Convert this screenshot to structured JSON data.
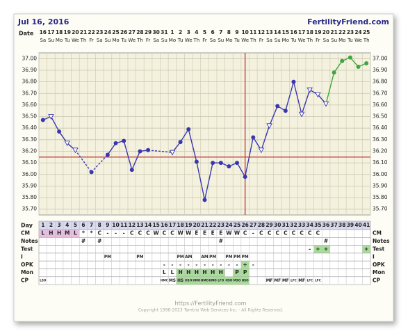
{
  "chart_data": {
    "type": "line",
    "title": "Jul 16, 2016",
    "site": "FertilityFriend.com",
    "date_label": "Date",
    "dates": [
      16,
      17,
      18,
      19,
      20,
      21,
      22,
      23,
      24,
      25,
      26,
      27,
      28,
      29,
      30,
      31,
      1,
      2,
      3,
      4,
      5,
      6,
      7,
      8,
      9,
      10,
      11,
      12,
      13,
      14,
      15,
      16,
      17,
      18,
      19,
      20,
      21,
      22,
      23,
      24,
      25
    ],
    "weekdays": [
      "Sa",
      "Su",
      "Mo",
      "Tu",
      "We",
      "Th",
      "Fr",
      "Sa",
      "Su",
      "Mo",
      "Tu",
      "We",
      "Th",
      "Fr",
      "Sa",
      "Su",
      "Mo",
      "Tu",
      "We",
      "Th",
      "Fr",
      "Sa",
      "Su",
      "Mo",
      "Tu",
      "We",
      "Th",
      "Fr",
      "Sa",
      "Su",
      "Mo",
      "Tu",
      "We",
      "Th",
      "Fr",
      "Sa",
      "Su",
      "Mo",
      "Tu",
      "We",
      "Th"
    ],
    "x": [
      1,
      2,
      3,
      4,
      5,
      6,
      7,
      8,
      9,
      10,
      11,
      12,
      13,
      14,
      15,
      16,
      17,
      18,
      19,
      20,
      21,
      22,
      23,
      24,
      25,
      26,
      27,
      28,
      29,
      30,
      31,
      32,
      33,
      34,
      35,
      36,
      37,
      38,
      39,
      40,
      41
    ],
    "series": [
      {
        "color": "#3a36b0",
        "values": [
          36.47,
          36.5,
          36.37,
          36.27,
          36.21,
          null,
          36.02,
          null,
          36.17,
          36.27,
          36.29,
          36.04,
          36.2,
          36.21,
          null,
          null,
          36.19,
          36.28,
          36.39,
          36.11,
          35.78,
          36.1,
          36.1,
          36.07,
          36.1,
          35.98,
          36.32,
          36.21,
          36.42,
          36.59,
          36.55,
          36.8,
          36.52,
          36.73,
          36.69,
          36.61,
          null,
          null,
          null,
          null,
          null
        ],
        "markers": [
          "dot",
          "open",
          "dot",
          "open",
          "open",
          null,
          "dot",
          null,
          "dot",
          "dot",
          "dot",
          "dot",
          "dot",
          "dot",
          null,
          null,
          "open",
          "dot",
          "dot",
          "dot",
          "dot",
          "dot",
          "dot",
          "dot",
          "dot",
          "dot",
          "dot",
          "open",
          "open",
          "dot",
          "dot",
          "dot",
          "open",
          "open",
          "open",
          "open",
          null,
          null,
          null,
          null,
          null
        ]
      },
      {
        "color": "#3fa53f",
        "values": [
          null,
          null,
          null,
          null,
          null,
          null,
          null,
          null,
          null,
          null,
          null,
          null,
          null,
          null,
          null,
          null,
          null,
          null,
          null,
          null,
          null,
          null,
          null,
          null,
          null,
          null,
          null,
          null,
          null,
          null,
          null,
          null,
          null,
          null,
          null,
          null,
          36.88,
          36.98,
          37.01,
          36.93,
          36.96
        ],
        "markers": [
          null,
          null,
          null,
          null,
          null,
          null,
          null,
          null,
          null,
          null,
          null,
          null,
          null,
          null,
          null,
          null,
          null,
          null,
          null,
          null,
          null,
          null,
          null,
          null,
          null,
          null,
          null,
          null,
          null,
          null,
          null,
          null,
          null,
          null,
          null,
          null,
          "dot",
          "dot",
          "dot",
          "dot",
          "dot"
        ]
      }
    ],
    "coverline": 36.15,
    "coverline_color": "#c0504d",
    "ovulation_day": 26,
    "ylim": [
      35.65,
      37.05
    ],
    "yticks": [
      {
        "value": 35.7,
        "label": "35.70"
      },
      {
        "value": 35.8,
        "label": "35.80"
      },
      {
        "value": 35.9,
        "label": "35.90"
      },
      {
        "value": 36.0,
        "label": "36.00"
      },
      {
        "value": 36.1,
        "label": "36.10"
      },
      {
        "value": 36.2,
        "label": "36.20"
      },
      {
        "value": 36.3,
        "label": "36.30"
      },
      {
        "value": 36.4,
        "label": "36.40"
      },
      {
        "value": 36.5,
        "label": "36.50"
      },
      {
        "value": 36.6,
        "label": "36.60"
      },
      {
        "value": 36.7,
        "label": "36.70"
      },
      {
        "value": 36.8,
        "label": "36.80"
      },
      {
        "value": 36.9,
        "label": "36.90"
      },
      {
        "value": 37.0,
        "label": "37.00"
      }
    ],
    "grid": true,
    "day_label": "Day",
    "rows": [
      {
        "label": "CM",
        "fill": "#e6bfe0",
        "filled": [
          1,
          2,
          3,
          4,
          5
        ],
        "cells": [
          "L",
          "H",
          "H",
          "M",
          "L",
          "*",
          "*",
          "C",
          "-",
          "-",
          "-",
          "C",
          "C",
          "C",
          "W",
          "C",
          "C",
          "W",
          "W",
          "E",
          "E",
          "E",
          "E",
          "W",
          "W",
          "C",
          "-",
          "C",
          "C",
          "C",
          "C",
          "C",
          "C",
          "C",
          "C",
          null,
          null,
          null,
          null,
          null,
          null
        ]
      },
      {
        "label": "Notes",
        "fill": null,
        "filled": [],
        "cells": [
          null,
          null,
          null,
          null,
          null,
          "#",
          null,
          "#",
          null,
          null,
          null,
          null,
          null,
          null,
          null,
          null,
          null,
          null,
          null,
          null,
          null,
          null,
          "#",
          null,
          null,
          null,
          null,
          null,
          null,
          null,
          null,
          null,
          null,
          null,
          null,
          "#",
          null,
          null,
          null,
          null,
          null
        ]
      },
      {
        "label": "Test",
        "fill": "#a9dc9a",
        "filled": [
          35,
          36,
          41
        ],
        "cells": [
          null,
          null,
          null,
          null,
          null,
          null,
          null,
          null,
          null,
          null,
          null,
          null,
          null,
          null,
          null,
          null,
          null,
          null,
          null,
          null,
          null,
          null,
          null,
          null,
          null,
          null,
          null,
          null,
          null,
          null,
          null,
          null,
          null,
          "-",
          "+",
          "+",
          null,
          null,
          null,
          null,
          "+"
        ]
      },
      {
        "label": "I",
        "fill": null,
        "filled": [],
        "cells": [
          null,
          null,
          null,
          null,
          null,
          null,
          null,
          null,
          "PM",
          null,
          null,
          null,
          "PM",
          null,
          null,
          null,
          null,
          "PM",
          "AM",
          null,
          "AM",
          "PM",
          null,
          "PM",
          "PM",
          "PM",
          null,
          null,
          null,
          null,
          null,
          null,
          null,
          null,
          null,
          null,
          null,
          null,
          null,
          null,
          null
        ]
      },
      {
        "label": "OPK",
        "fill": "#a9dc9a",
        "filled": [
          26
        ],
        "cells": [
          null,
          null,
          null,
          null,
          null,
          null,
          null,
          null,
          null,
          null,
          null,
          null,
          null,
          null,
          null,
          "-",
          "-",
          "-",
          "-",
          "-",
          "-",
          "-",
          "-",
          "-",
          "-",
          "+",
          "-",
          null,
          null,
          null,
          null,
          null,
          null,
          null,
          null,
          null,
          null,
          null,
          null,
          null,
          null
        ]
      },
      {
        "label": "Mon",
        "fill": "#a9dc9a",
        "filled": [
          18,
          19,
          20,
          21,
          22,
          23,
          25,
          26
        ],
        "cells": [
          null,
          null,
          null,
          null,
          null,
          null,
          null,
          null,
          null,
          null,
          null,
          null,
          null,
          null,
          null,
          "L",
          "L",
          "H",
          "H",
          "H",
          "H",
          "H",
          "H",
          null,
          "P",
          "P",
          null,
          null,
          null,
          null,
          null,
          null,
          null,
          null,
          null,
          null,
          null,
          null,
          null,
          null,
          null
        ]
      },
      {
        "label": "CP",
        "fill": "#a9dc9a",
        "filled": [
          18,
          19,
          20,
          21,
          22,
          23,
          24,
          25,
          26
        ],
        "cells": [
          "LSO",
          null,
          null,
          null,
          null,
          null,
          null,
          null,
          null,
          null,
          null,
          null,
          null,
          null,
          null,
          "HMC",
          "MS",
          "HS",
          "HSO",
          "HMO",
          "HMO",
          "HMO",
          "LFO",
          "HSO",
          "MSO",
          "HSO",
          null,
          null,
          "MF",
          "MF",
          "MF",
          "LFC",
          "MF",
          "LFC",
          "LFC",
          null,
          null,
          null,
          null,
          null,
          null
        ]
      }
    ],
    "footer_url": "https://FertilityFriend.com",
    "copyright": "Copyright 1998-2023 Tamtris Web Services Inc. - All Rights Reserved."
  }
}
